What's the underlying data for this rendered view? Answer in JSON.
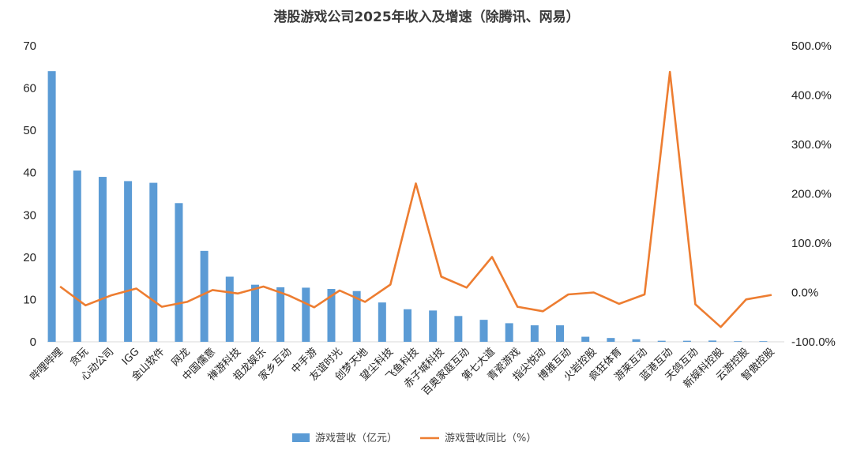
{
  "chart_data": {
    "type": "bar",
    "title": "港股游戏公司2025年收入及增速（除腾讯、网易）",
    "categories": [
      "哔哩哔哩",
      "贪玩",
      "心动公司",
      "IGG",
      "金山软件",
      "网龙",
      "中国儒意",
      "禅游科技",
      "祖龙娱乐",
      "家乡互动",
      "中手游",
      "友谊时光",
      "创梦天地",
      "望尘科技",
      "飞鱼科技",
      "赤子城科技",
      "百奥家庭互动",
      "第七大道",
      "青瓷游戏",
      "指尖悦动",
      "博雅互动",
      "火岩控股",
      "疯狂体育",
      "游莱互动",
      "蓝港互动",
      "天鸽互动",
      "新娱科控股",
      "云游控股",
      "智傲控股"
    ],
    "series": [
      {
        "name": "游戏营收（亿元）",
        "type": "bar",
        "axis": "left",
        "color": "#5B9BD5",
        "values": [
          64.0,
          40.5,
          39.0,
          38.0,
          37.6,
          32.8,
          21.5,
          15.4,
          13.5,
          12.9,
          12.8,
          12.5,
          12.0,
          9.3,
          7.7,
          7.4,
          6.1,
          5.2,
          4.4,
          3.9,
          3.9,
          1.2,
          0.9,
          0.6,
          0.25,
          0.25,
          0.3,
          0.15,
          0.15
        ]
      },
      {
        "name": "游戏营收同比（%）",
        "type": "line",
        "axis": "right",
        "color": "#ED7D31",
        "values": [
          12,
          -26,
          -6,
          8,
          -29,
          -19,
          5,
          -2,
          12,
          -6,
          -30,
          4,
          -19,
          16,
          221,
          32,
          10,
          72,
          -29,
          -38,
          -4,
          0,
          -23,
          -4,
          447,
          -24,
          -70,
          -14,
          -5
        ]
      }
    ],
    "y_left": {
      "min": 0,
      "max": 70,
      "ticks": [
        "0",
        "10",
        "20",
        "30",
        "40",
        "50",
        "60",
        "70"
      ]
    },
    "y_right": {
      "min": -100,
      "max": 500,
      "ticks": [
        "-100.0%",
        "0.0%",
        "100.0%",
        "200.0%",
        "300.0%",
        "400.0%",
        "500.0%"
      ]
    },
    "grid": false,
    "legend_position": "bottom"
  }
}
